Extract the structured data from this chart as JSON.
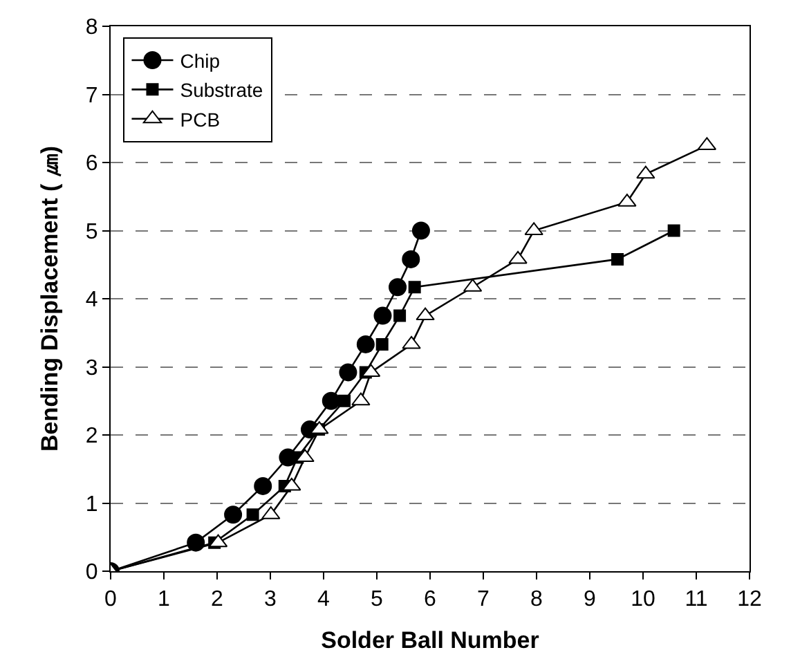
{
  "chart_data": {
    "type": "line",
    "xlabel": "Solder Ball Number",
    "ylabel": "Bending Displacement ( ㎛)",
    "xlim": [
      0,
      12
    ],
    "xticks": [
      0,
      1,
      2,
      3,
      4,
      5,
      6,
      7,
      8,
      9,
      10,
      11,
      12
    ],
    "ylim": [
      0,
      8
    ],
    "yticks": [
      0,
      1,
      2,
      3,
      4,
      5,
      6,
      7,
      8
    ],
    "grid": "y",
    "legend": "top left",
    "line_style": "solid",
    "series": [
      {
        "name": "Chip",
        "color": "#000000",
        "marker": "circle",
        "x": [
          0,
          1.6,
          2.3,
          2.86,
          3.33,
          3.74,
          4.14,
          4.46,
          4.79,
          5.11,
          5.39,
          5.64,
          5.83
        ],
        "values": [
          0,
          0.42,
          0.83,
          1.25,
          1.67,
          2.08,
          2.5,
          2.92,
          3.33,
          3.75,
          4.17,
          4.58,
          5.0
        ]
      },
      {
        "name": "Substrate",
        "color": "#000000",
        "marker": "square",
        "x": [
          0,
          1.95,
          2.67,
          3.27,
          3.51,
          3.91,
          4.39,
          4.79,
          5.1,
          5.43,
          5.71,
          9.52,
          10.58
        ],
        "values": [
          0,
          0.42,
          0.83,
          1.25,
          1.67,
          2.08,
          2.5,
          2.92,
          3.33,
          3.75,
          4.17,
          4.58,
          5.0
        ]
      },
      {
        "name": "PCB",
        "color": "#000000",
        "marker": "triangle",
        "x": [
          0,
          2.02,
          3.01,
          3.4,
          3.65,
          3.92,
          4.7,
          4.89,
          5.65,
          5.91,
          6.8,
          7.65,
          7.95,
          9.7,
          10.05,
          11.2
        ],
        "values": [
          0,
          0.42,
          0.83,
          1.25,
          1.67,
          2.08,
          2.5,
          2.92,
          3.33,
          3.75,
          4.17,
          4.58,
          5.0,
          5.42,
          5.83,
          6.25
        ]
      }
    ]
  }
}
